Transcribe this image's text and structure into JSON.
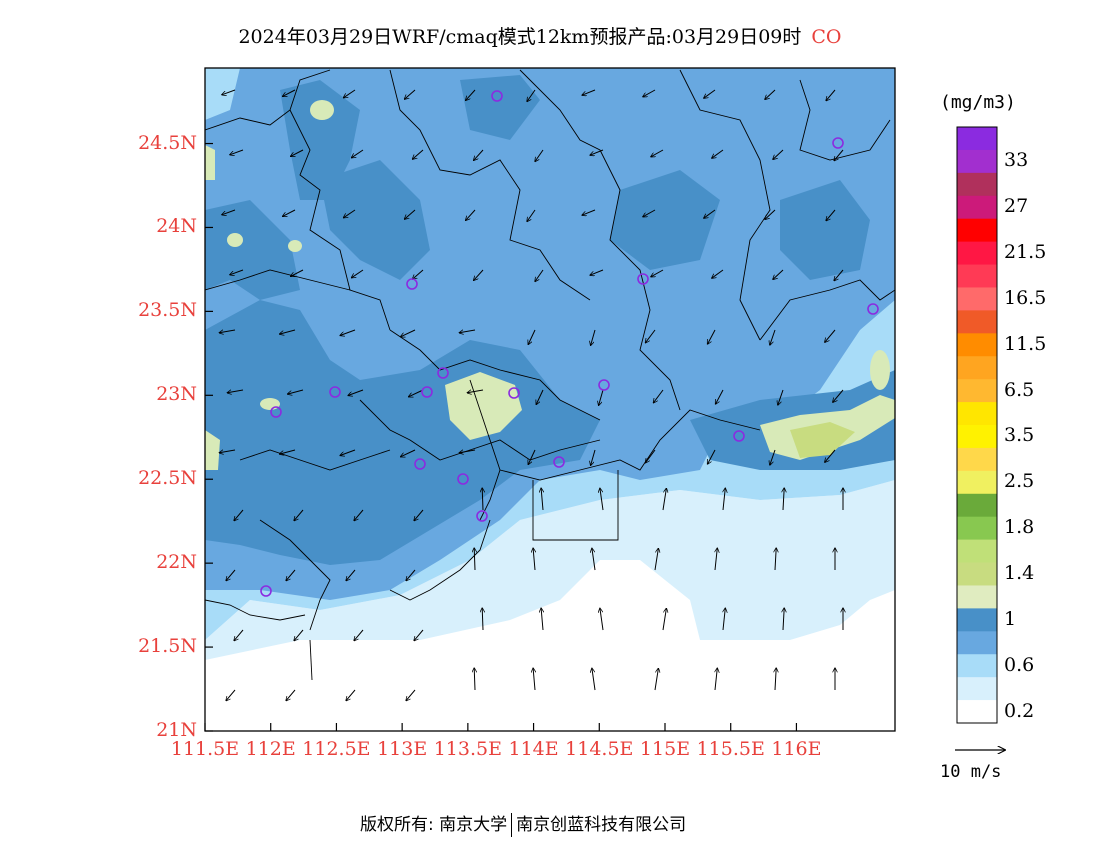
{
  "title": {
    "text": "2024年03月29日WRF/cmaq模式12km预报产品:03月29日09时",
    "pollutant": "CO"
  },
  "map": {
    "lat_ticks": [
      "24.5N",
      "24N",
      "23.5N",
      "23N",
      "22.5N",
      "22N",
      "21.5N",
      "21N"
    ],
    "lat_values": [
      24.5,
      24,
      23.5,
      23,
      22.5,
      22,
      21.5,
      21
    ],
    "lon_ticks": [
      "111.5E",
      "112E",
      "112.5E",
      "113E",
      "113.5E",
      "114E",
      "114.5E",
      "115E",
      "115.5E",
      "116E"
    ],
    "lon_values": [
      111.5,
      112,
      112.5,
      113,
      113.5,
      114,
      114.5,
      115,
      115.5,
      116
    ],
    "lat_range": [
      21.0,
      24.95
    ],
    "lon_range": [
      111.5,
      116.75
    ],
    "field_classes": [
      "< 0.2",
      "0.2–0.6",
      "0.6–1",
      "1–1.4",
      "1.4–1.8"
    ],
    "vector_unit": "10 m/s",
    "station_marker": "purple-circle"
  },
  "legend": {
    "unit": "(mg/m3)",
    "labels": [
      "33",
      "27",
      "21.5",
      "16.5",
      "11.5",
      "6.5",
      "3.5",
      "2.5",
      "1.8",
      "1.4",
      "1",
      "0.6",
      "0.2"
    ],
    "colors": [
      "#8b2be0",
      "#a22fcf",
      "#b0305c",
      "#cc1a7a",
      "#ff0000",
      "#ff1744",
      "#ff3a55",
      "#ff6a6a",
      "#f05a28",
      "#ff8c00",
      "#ffa520",
      "#ffb830",
      "#ffe600",
      "#fff200",
      "#ffd84a",
      "#f0f060",
      "#6aaa3a",
      "#88c850",
      "#c0e078",
      "#c8dc80",
      "#e0ecc0",
      "#4890c8",
      "#68a8e0",
      "#a8dcf8",
      "#d8f0fc",
      "#ffffff"
    ]
  },
  "colors": {
    "axis_label": "#e8413c",
    "class_white": "#ffffff",
    "class_lightest": "#d8f0fc",
    "class_light": "#a8dcf8",
    "class_mid": "#68a8e0",
    "class_dark": "#4890c8",
    "class_green": "#d8eab8"
  },
  "credit": {
    "left": "版权所有: 南京大学",
    "right": "南京创蓝科技有限公司"
  }
}
